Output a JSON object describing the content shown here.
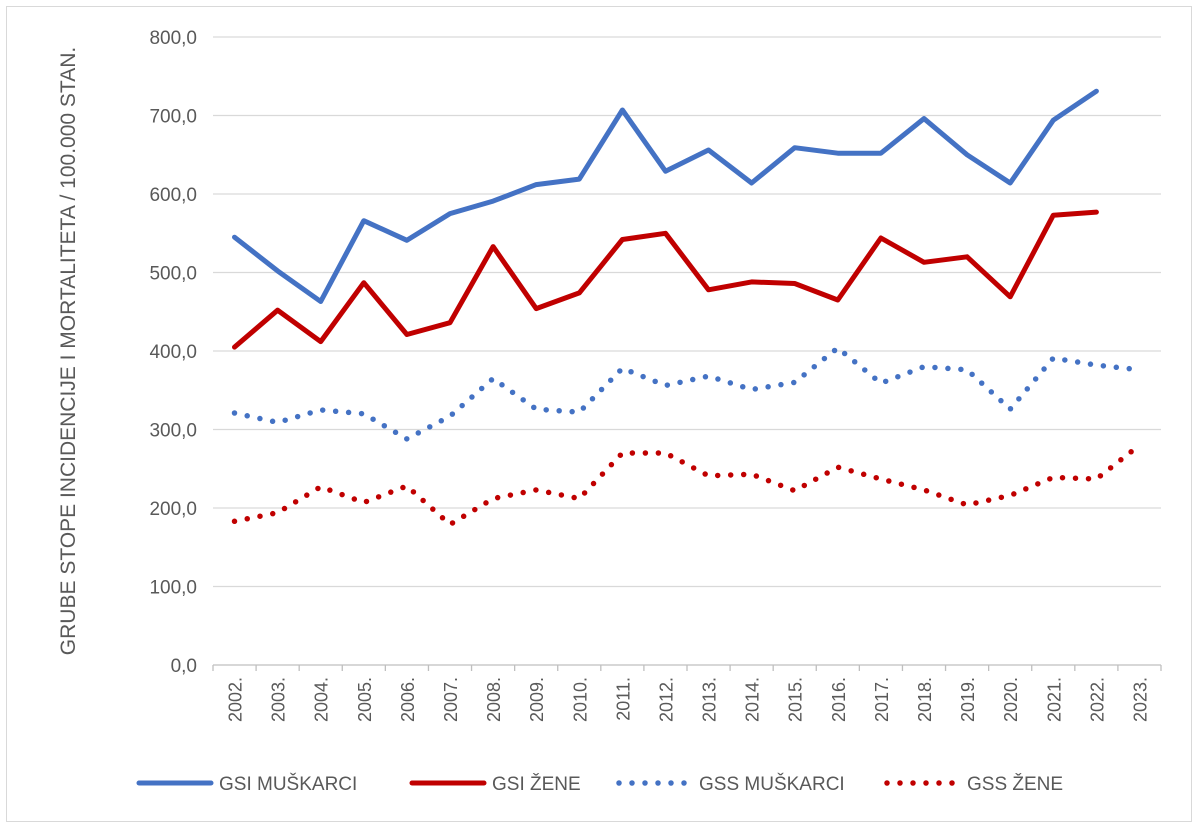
{
  "chart_data": {
    "type": "line",
    "title": "",
    "xlabel": "",
    "ylabel": "GRUBE STOPE INCIDENCIJE I MORTALITETA / 100.000 STAN.",
    "ylim": [
      0,
      800
    ],
    "yticks": [
      "0,0",
      "100,0",
      "200,0",
      "300,0",
      "400,0",
      "500,0",
      "600,0",
      "700,0",
      "800,0"
    ],
    "ytick_values": [
      0,
      100,
      200,
      300,
      400,
      500,
      600,
      700,
      800
    ],
    "grid": true,
    "legend_position": "bottom",
    "categories": [
      "2002.",
      "2003.",
      "2004.",
      "2005.",
      "2006.",
      "2007.",
      "2008.",
      "2009.",
      "2010.",
      "2011.",
      "2012.",
      "2013.",
      "2014.",
      "2015.",
      "2016.",
      "2017.",
      "2018.",
      "2019.",
      "2020.",
      "2021.",
      "2022.",
      "2023."
    ],
    "series": [
      {
        "name": "GSI MUŠKARCI",
        "color": "#4472c4",
        "style": "solid",
        "values": [
          545,
          502,
          463,
          566,
          541,
          575,
          591,
          612,
          619,
          707,
          629,
          656,
          614,
          659,
          652,
          652,
          696,
          650,
          614,
          694,
          731,
          null
        ]
      },
      {
        "name": "GSI ŽENE",
        "color": "#c00000",
        "style": "solid",
        "values": [
          405,
          452,
          412,
          487,
          421,
          436,
          533,
          454,
          474,
          542,
          550,
          478,
          488,
          486,
          465,
          544,
          513,
          520,
          469,
          573,
          577,
          null
        ]
      },
      {
        "name": "GSS MUŠKARCI",
        "color": "#4472c4",
        "style": "dotted",
        "values": [
          321,
          309,
          325,
          320,
          288,
          317,
          365,
          326,
          322,
          378,
          356,
          368,
          351,
          360,
          404,
          359,
          380,
          376,
          326,
          391,
          382,
          376
        ]
      },
      {
        "name": "GSS ŽENE",
        "color": "#c00000",
        "style": "dotted",
        "values": [
          183,
          194,
          227,
          207,
          228,
          179,
          212,
          223,
          212,
          270,
          270,
          241,
          243,
          222,
          252,
          237,
          223,
          204,
          216,
          239,
          237,
          280
        ]
      }
    ]
  }
}
